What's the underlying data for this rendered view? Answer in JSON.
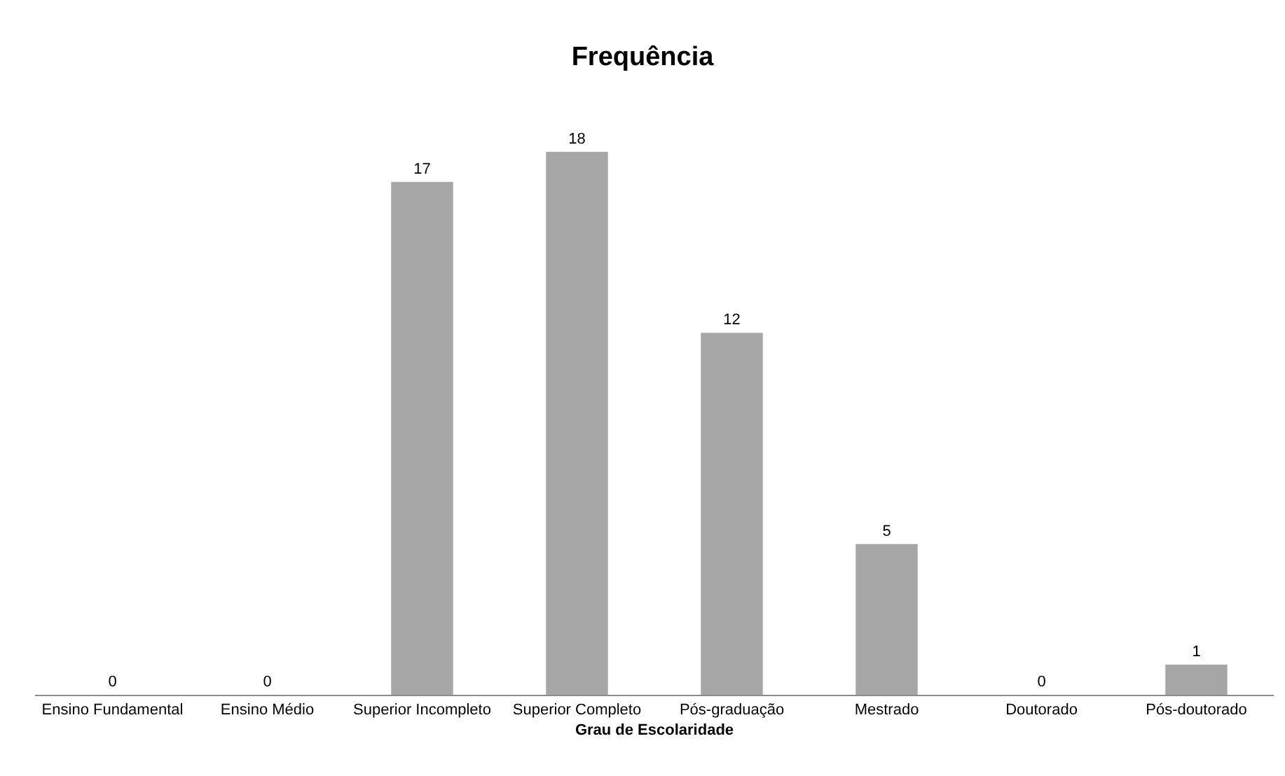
{
  "chart_data": {
    "type": "bar",
    "title": "Frequência",
    "xlabel": "Grau de Escolaridade",
    "categories": [
      "Ensino Fundamental",
      "Ensino Médio",
      "Superior Incompleto",
      "Superior Completo",
      "Pós-graduação",
      "Mestrado",
      "Doutorado",
      "Pós-doutorado"
    ],
    "values": [
      0,
      0,
      17,
      18,
      12,
      5,
      0,
      1
    ],
    "color": "#a6a6a6",
    "data_labels": true
  }
}
